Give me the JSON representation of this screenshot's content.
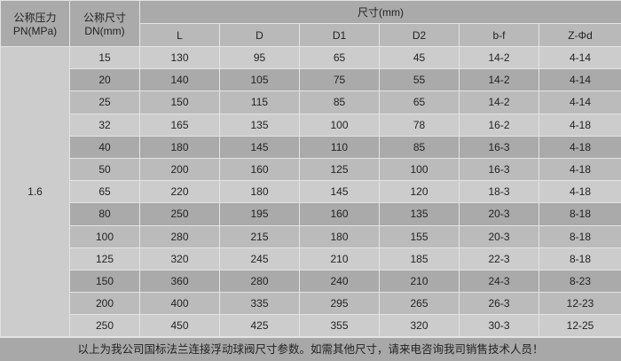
{
  "header": {
    "pressure_cn": "公称压力",
    "pressure_unit": "PN(MPa)",
    "size_cn": "公称尺寸",
    "size_unit": "DN(mm)",
    "dims": "尺寸(mm)",
    "columns": [
      "L",
      "D",
      "D1",
      "D2",
      "b-f",
      "Z-Φd"
    ]
  },
  "pressure_value": "1.6",
  "rows": [
    [
      "15",
      "130",
      "95",
      "65",
      "45",
      "14-2",
      "4-14"
    ],
    [
      "20",
      "140",
      "105",
      "75",
      "55",
      "14-2",
      "4-14"
    ],
    [
      "25",
      "150",
      "115",
      "85",
      "65",
      "14-2",
      "4-14"
    ],
    [
      "32",
      "165",
      "135",
      "100",
      "78",
      "16-2",
      "4-18"
    ],
    [
      "40",
      "180",
      "145",
      "110",
      "85",
      "16-3",
      "4-18"
    ],
    [
      "50",
      "200",
      "160",
      "125",
      "100",
      "16-3",
      "4-18"
    ],
    [
      "65",
      "220",
      "180",
      "145",
      "120",
      "18-3",
      "4-18"
    ],
    [
      "80",
      "250",
      "195",
      "160",
      "135",
      "20-3",
      "8-18"
    ],
    [
      "100",
      "280",
      "215",
      "180",
      "155",
      "20-3",
      "8-18"
    ],
    [
      "125",
      "320",
      "245",
      "210",
      "185",
      "22-3",
      "8-18"
    ],
    [
      "150",
      "360",
      "280",
      "240",
      "210",
      "24-3",
      "8-23"
    ],
    [
      "200",
      "400",
      "335",
      "295",
      "265",
      "26-3",
      "12-23"
    ],
    [
      "250",
      "450",
      "425",
      "355",
      "320",
      "30-3",
      "12-25"
    ]
  ],
  "footer": "以上为我公司国标法兰连接浮动球阀尺寸参数。如需其他尺寸，请来电咨询我司销售技术人员！"
}
